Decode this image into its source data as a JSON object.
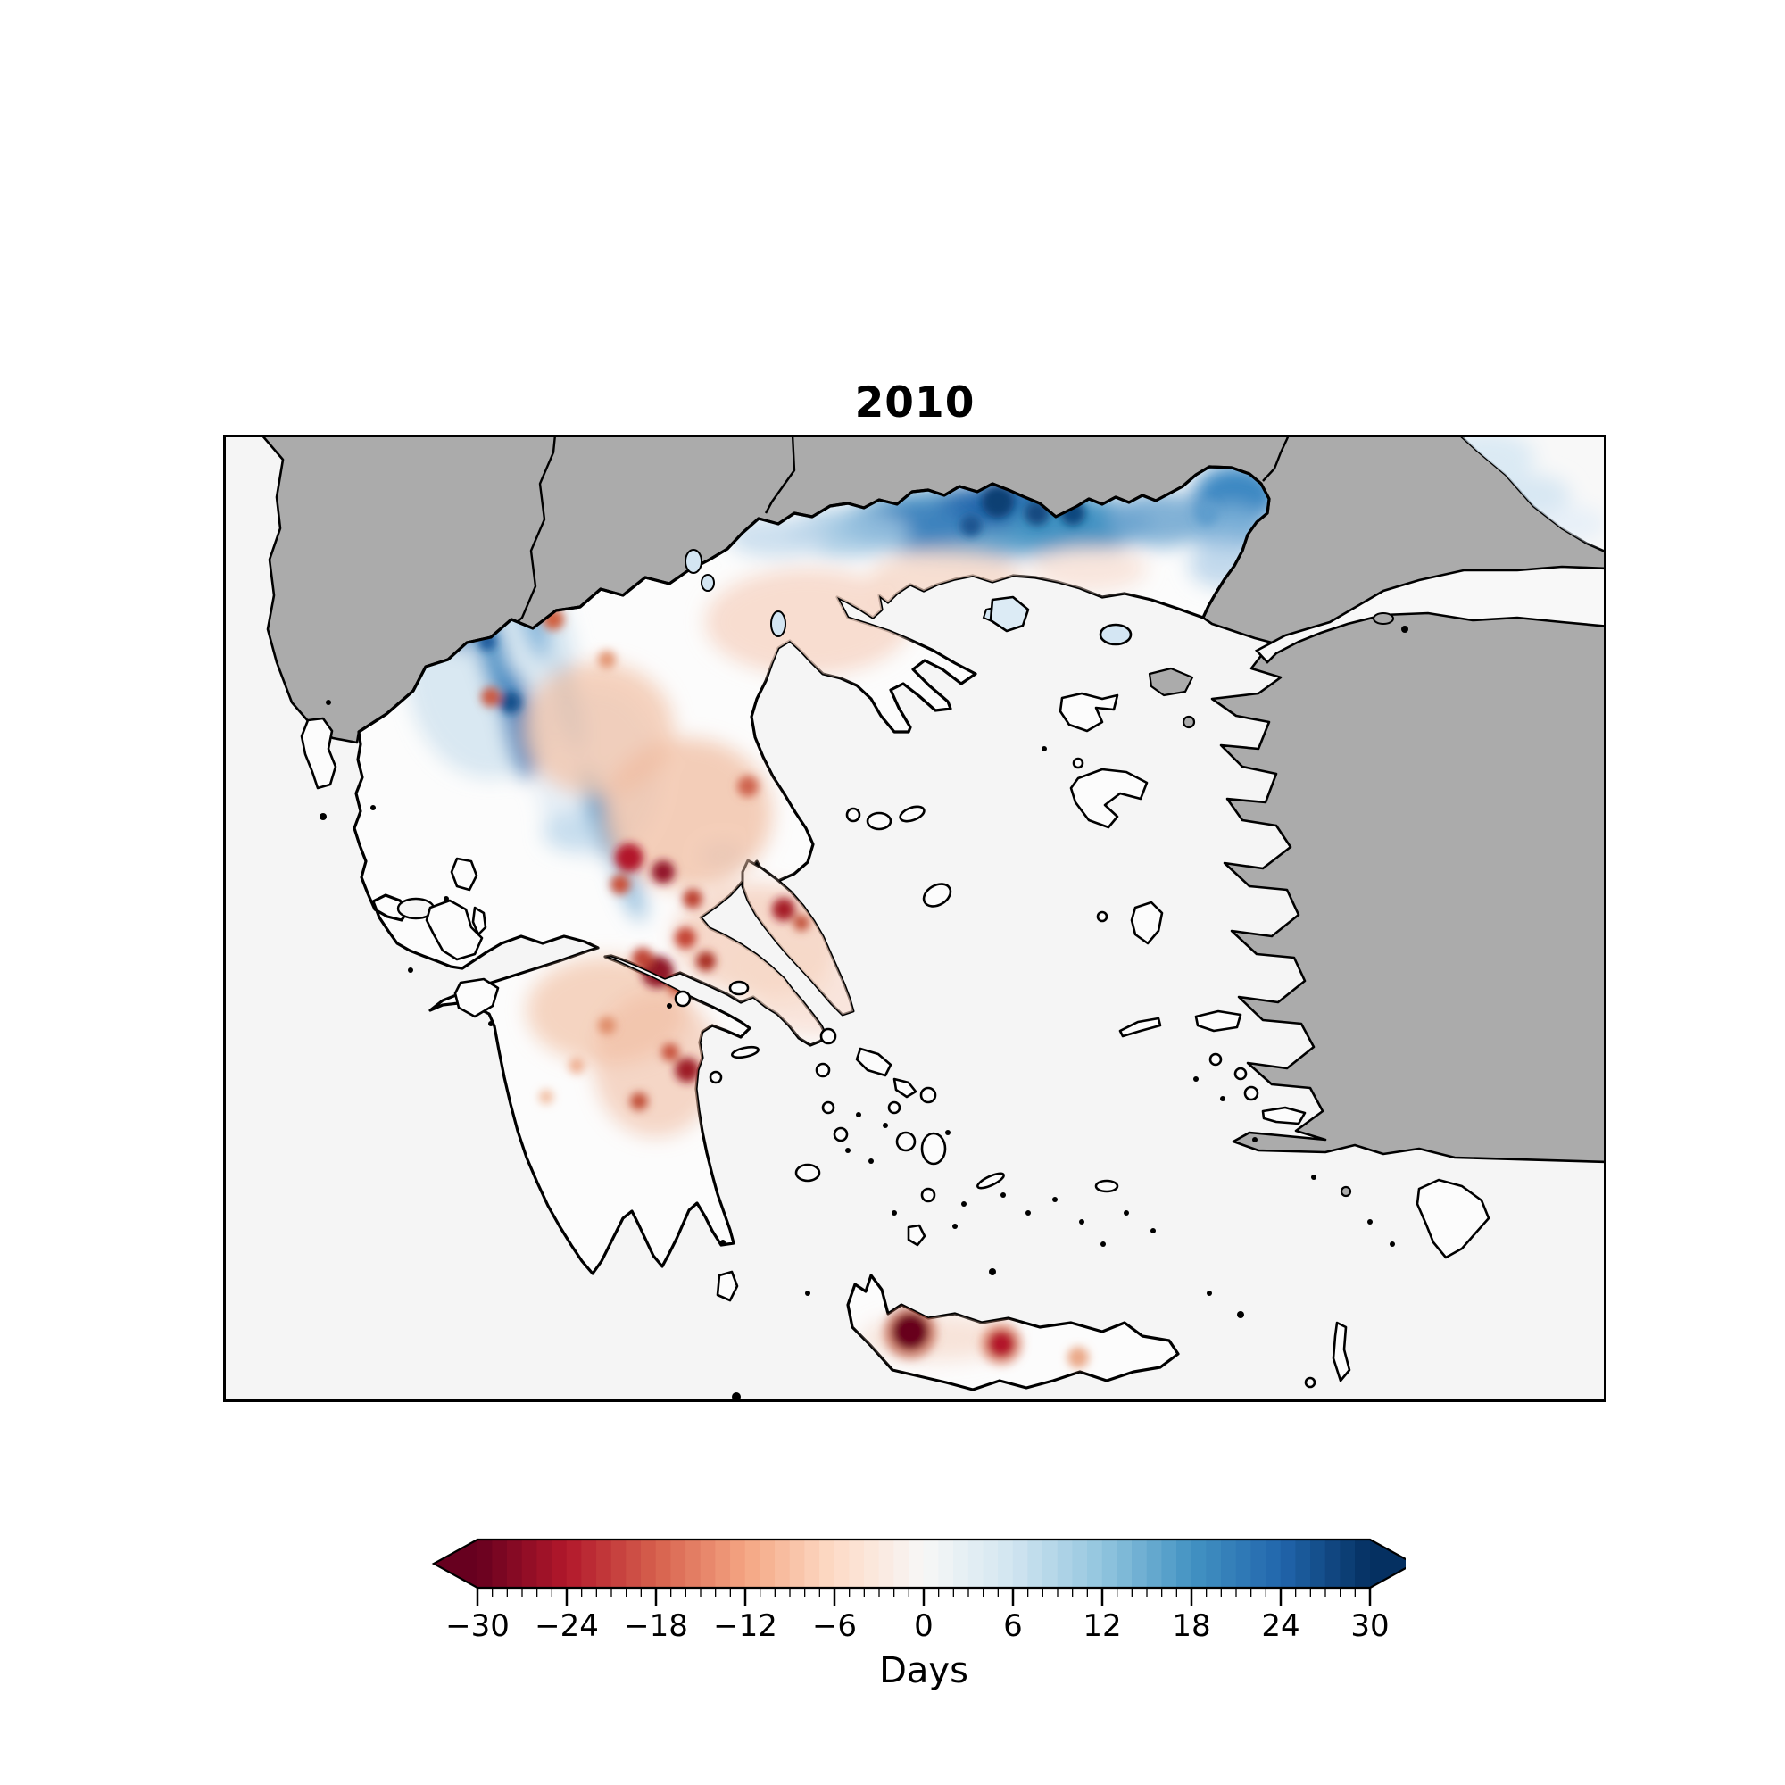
{
  "figure": {
    "title": "2010"
  },
  "colors": {
    "sea": "#f5f5f5",
    "non_greece_land": "#ababab",
    "greece_fill": "#fcfcfc",
    "coastline": "#000000",
    "frame": "#000000",
    "lake_fill": "#d3e5f2"
  },
  "chart_data": {
    "type": "heatmap",
    "title": "2010",
    "subtitle": "",
    "legend_position": "bottom",
    "grid": false,
    "colorbar": {
      "label": "Days",
      "min": -30,
      "max": 30,
      "major_tick_step": 6,
      "minor_tick_step": 1,
      "extend": "both",
      "ticks": [
        -30,
        -24,
        -18,
        -12,
        -6,
        0,
        6,
        12,
        18,
        24,
        30
      ],
      "tick_labels": [
        "−30",
        "−24",
        "−18",
        "−12",
        "−6",
        "0",
        "6",
        "12",
        "18",
        "24",
        "30"
      ],
      "colormap": "RdBu",
      "colormap_anchors": [
        "#67001f",
        "#b2182b",
        "#d6604d",
        "#f4a582",
        "#fddbc7",
        "#f7f7f7",
        "#d1e5f0",
        "#92c5de",
        "#4393c3",
        "#2166ac",
        "#053061"
      ]
    },
    "map_extent": "Greece and the Aegean (non-Greek land masked gray)",
    "regions": [
      {
        "region": "Northern border band (Rhodope / Thrace)",
        "anomaly_days": "+10 to +30"
      },
      {
        "region": "Northeastern bulge (Evros)",
        "anomaly_days": "+15 to +25"
      },
      {
        "region": "Northwest streaks (Epirus / W. Macedonia / Pindus)",
        "anomaly_days": "+5 to +25"
      },
      {
        "region": "Scattered NW / central red patches",
        "anomaly_days": "-5 to -15"
      },
      {
        "region": "Thessaly / Phthiotis dark patches",
        "anomaly_days": "-10 to -22"
      },
      {
        "region": "Northeast Peloponnese spot",
        "anomaly_days": "-15 to -25"
      },
      {
        "region": "Southeast Peloponnese spot",
        "anomaly_days": "-12 to -20"
      },
      {
        "region": "West Crete spot",
        "anomaly_days": "-25 to -30"
      },
      {
        "region": "Central Crete spot",
        "anomaly_days": "-15 to -20"
      },
      {
        "region": "East Crete spot",
        "anomaly_days": "-5 to -10"
      },
      {
        "region": "Most of southern / eastern Greece and islands",
        "anomaly_days": "0"
      }
    ]
  }
}
